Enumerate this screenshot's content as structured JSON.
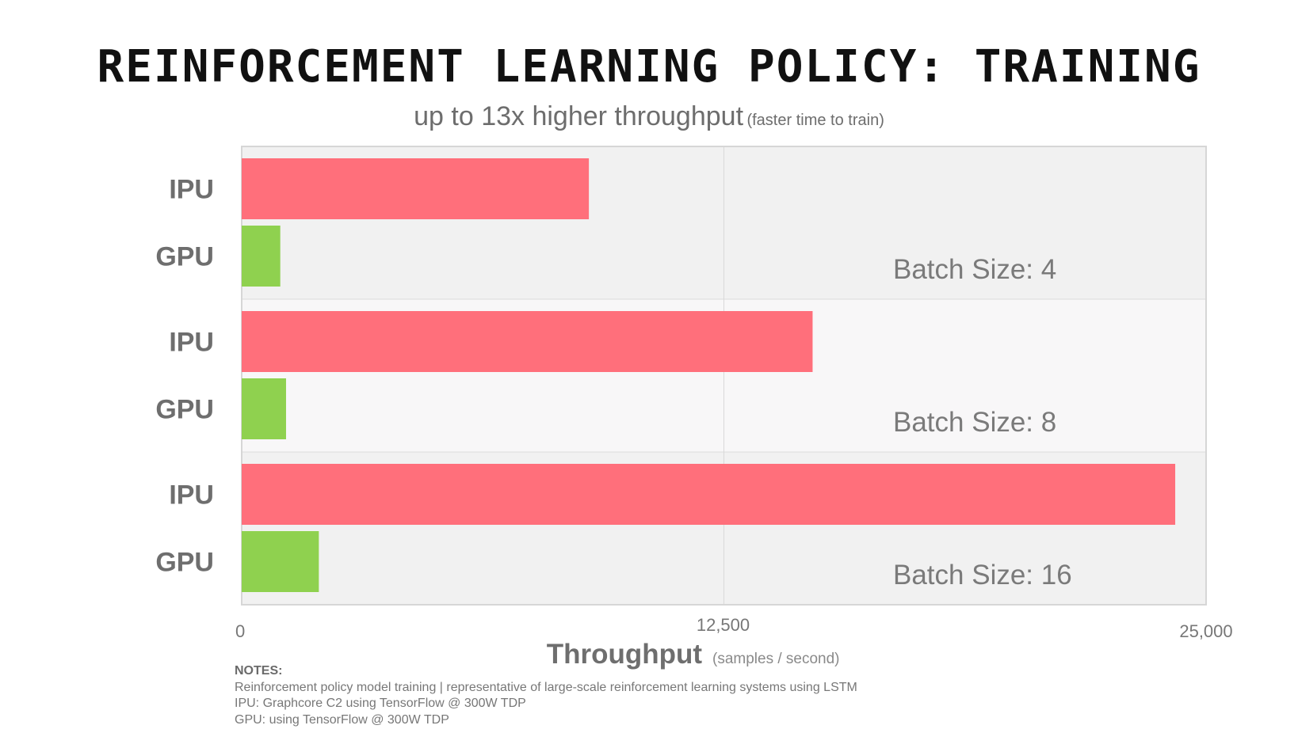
{
  "title": "REINFORCEMENT LEARNING POLICY: TRAINING",
  "subtitle": {
    "main": "up to 13x higher throughput",
    "paren": "(faster time to train)"
  },
  "chart_data": {
    "type": "bar",
    "orientation": "horizontal",
    "xlabel": "Throughput",
    "xlabel_unit": "(samples / second)",
    "xlim": [
      0,
      25000
    ],
    "xticks": [
      {
        "value": 0,
        "label": "0"
      },
      {
        "value": 12500,
        "label": "12,500"
      },
      {
        "value": 25000,
        "label": "25,000"
      }
    ],
    "grid": true,
    "groups": [
      {
        "label": "Batch Size: 4",
        "bars": [
          {
            "name": "IPU",
            "value": 9000,
            "color": "#ff6f7b"
          },
          {
            "name": "GPU",
            "value": 1000,
            "color": "#8fd14f"
          }
        ]
      },
      {
        "label": "Batch Size: 8",
        "bars": [
          {
            "name": "IPU",
            "value": 14800,
            "color": "#ff6f7b"
          },
          {
            "name": "GPU",
            "value": 1150,
            "color": "#8fd14f"
          }
        ]
      },
      {
        "label": "Batch Size: 16",
        "bars": [
          {
            "name": "IPU",
            "value": 24200,
            "color": "#ff6f7b"
          },
          {
            "name": "GPU",
            "value": 2000,
            "color": "#8fd14f"
          }
        ]
      }
    ]
  },
  "notes": {
    "heading": "NOTES:",
    "lines": [
      "Reinforcement policy model training | representative of large-scale reinforcement learning systems using LSTM",
      "IPU: Graphcore C2 using TensorFlow @ 300W TDP",
      "GPU: using TensorFlow @ 300W TDP"
    ]
  }
}
